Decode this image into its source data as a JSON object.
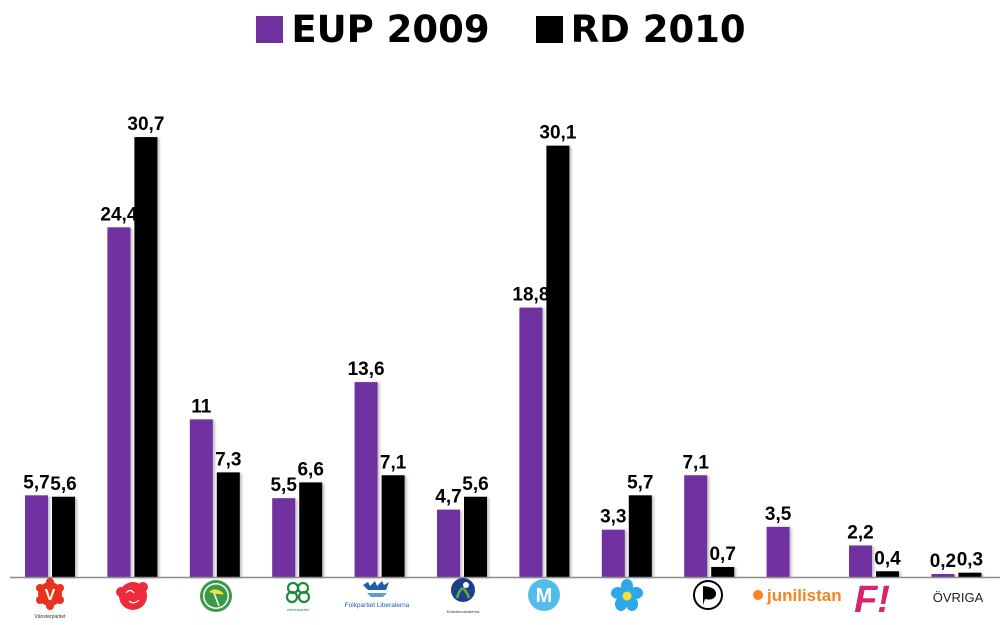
{
  "chart_data": {
    "type": "bar",
    "title": "",
    "xlabel": "",
    "ylabel": "",
    "ylim": [
      0,
      32
    ],
    "grid": false,
    "legend_position": "top-center",
    "categories": [
      "Vänsterpartiet",
      "Socialdemokraterna",
      "Miljöpartiet",
      "Centerpartiet",
      "Folkpartiet Liberalerna",
      "Kristdemokraterna",
      "Moderaterna",
      "Sverigedemokraterna",
      "Piratpartiet",
      "junilistan",
      "Feministiskt initiativ",
      "ÖVRIGA"
    ],
    "series": [
      {
        "name": "EUP 2009",
        "color": "#7030A0",
        "values": [
          5.7,
          24.4,
          11,
          5.5,
          13.6,
          4.7,
          18.8,
          3.3,
          7.1,
          3.5,
          2.2,
          0.2
        ],
        "labels": [
          "5,7",
          "24,4",
          "11",
          "5,5",
          "13,6",
          "4,7",
          "18,8",
          "3,3",
          "7,1",
          "3,5",
          "2,2",
          "0,2"
        ]
      },
      {
        "name": "RD 2010",
        "color": "#000000",
        "values": [
          5.6,
          30.7,
          7.3,
          6.6,
          7.1,
          5.6,
          30.1,
          5.7,
          0.7,
          null,
          0.4,
          0.3
        ],
        "labels": [
          "5,6",
          "30,7",
          "7,3",
          "6,6",
          "7,1",
          "5,6",
          "30,1",
          "5,7",
          "0,7",
          null,
          "0,4",
          "0,3"
        ]
      }
    ]
  },
  "legend": [
    {
      "label": "EUP 2009",
      "color": "#7030A0"
    },
    {
      "label": "RD 2010",
      "color": "#000000"
    }
  ],
  "logos": {
    "v_letter": "V",
    "v_caption": "Vänsterpartiet",
    "c_caption": "centerpartiet",
    "fp_caption": "Folkpartiet Liberalerna",
    "kd_caption": "Kristdemokraterna",
    "m_letter": "M",
    "pp_letter": "P",
    "junilistan": "junilistan",
    "fi": "F!",
    "ovriga": "ÖVRIGA"
  }
}
